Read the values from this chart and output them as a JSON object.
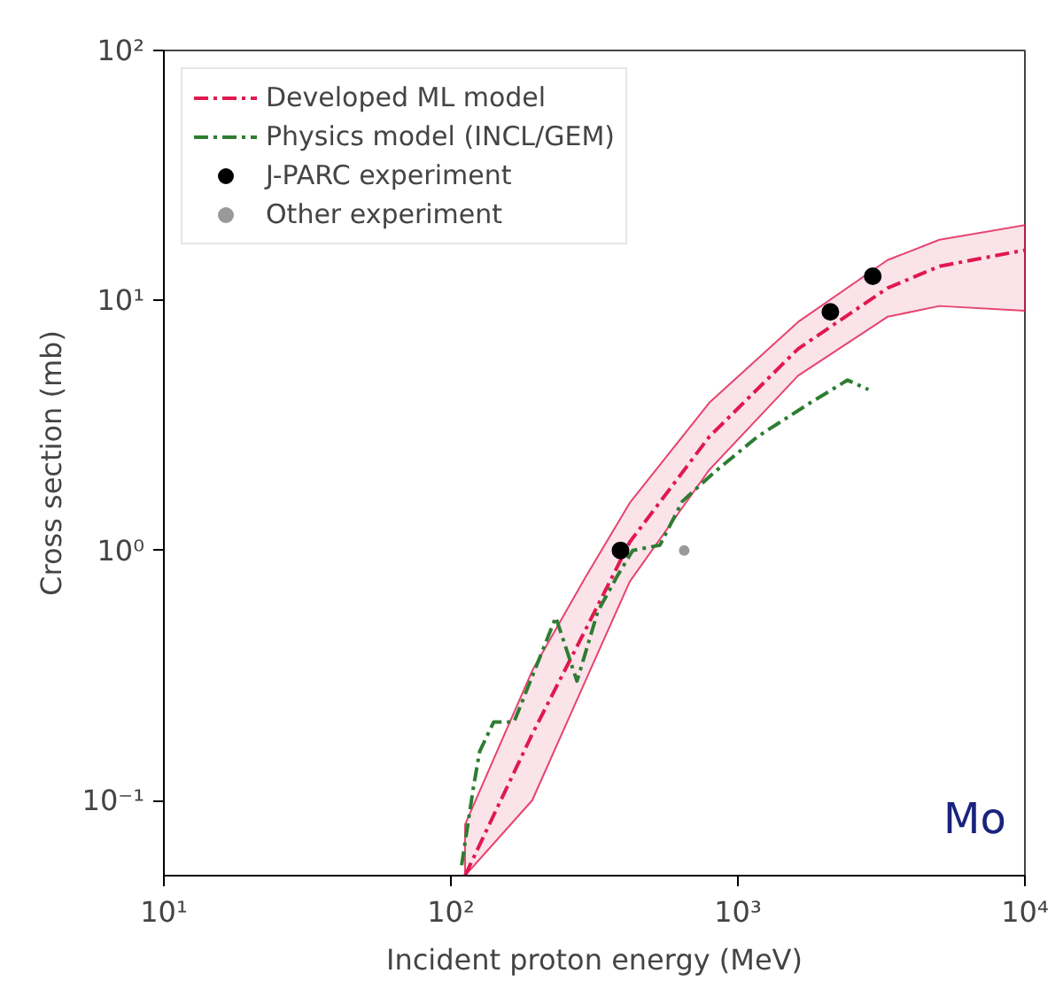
{
  "chart_data": {
    "type": "line",
    "xlabel": "Incident proton energy (MeV)",
    "ylabel": "Cross section (mb)",
    "log": "xy",
    "xlim": [
      10,
      10000
    ],
    "ylim": [
      0.05,
      100
    ],
    "xticks": [
      {
        "value": 10,
        "label": "10¹"
      },
      {
        "value": 100,
        "label": "10²"
      },
      {
        "value": 1000,
        "label": "10³"
      },
      {
        "value": 10000,
        "label": "10⁴"
      }
    ],
    "yticks": [
      {
        "value": 0.1,
        "label": "10⁻¹"
      },
      {
        "value": 1,
        "label": "10⁰"
      },
      {
        "value": 10,
        "label": "10¹"
      },
      {
        "value": 100,
        "label": "10²"
      }
    ],
    "grid": false,
    "legend": "top left",
    "annotations": [
      "Mo"
    ],
    "series": [
      {
        "name": "Developed ML model",
        "color": "#e0194f",
        "line_style": "dashdot",
        "x": [
          112,
          192,
          294,
          420,
          795,
          1620,
          3320,
          5040,
          10000
        ],
        "values": [
          0.05,
          0.184,
          0.48,
          1.08,
          2.85,
          6.4,
          11.2,
          13.7,
          15.9
        ],
        "lower": [
          0.05,
          0.1,
          0.3,
          0.75,
          2.1,
          5.0,
          8.6,
          9.5,
          9.1
        ],
        "upper": [
          0.08,
          0.33,
          0.78,
          1.55,
          3.9,
          8.2,
          14.5,
          17.5,
          20
        ]
      },
      {
        "name": "Physics model (INCL/GEM)",
        "color": "#2e7d32",
        "line_style": "dashdot",
        "x": [
          109,
          120,
          126,
          141,
          166,
          232,
          275,
          325,
          380,
          430,
          535,
          640,
          830,
          1170,
          1790,
          2410,
          2850
        ],
        "values": [
          0.055,
          0.114,
          0.157,
          0.206,
          0.206,
          0.54,
          0.3,
          0.57,
          0.79,
          1.0,
          1.05,
          1.57,
          2.06,
          2.85,
          3.9,
          4.8,
          4.4
        ]
      },
      {
        "name": "J-PARC experiment",
        "type": "scatter",
        "color": "#000000",
        "marker": "circle",
        "x": [
          390,
          2100,
          2950
        ],
        "values": [
          1.0,
          9.0,
          12.5
        ]
      },
      {
        "name": "Other experiment",
        "type": "scatter",
        "color": "#999999",
        "marker": "circle",
        "x": [
          650
        ],
        "values": [
          1.0
        ]
      }
    ]
  }
}
